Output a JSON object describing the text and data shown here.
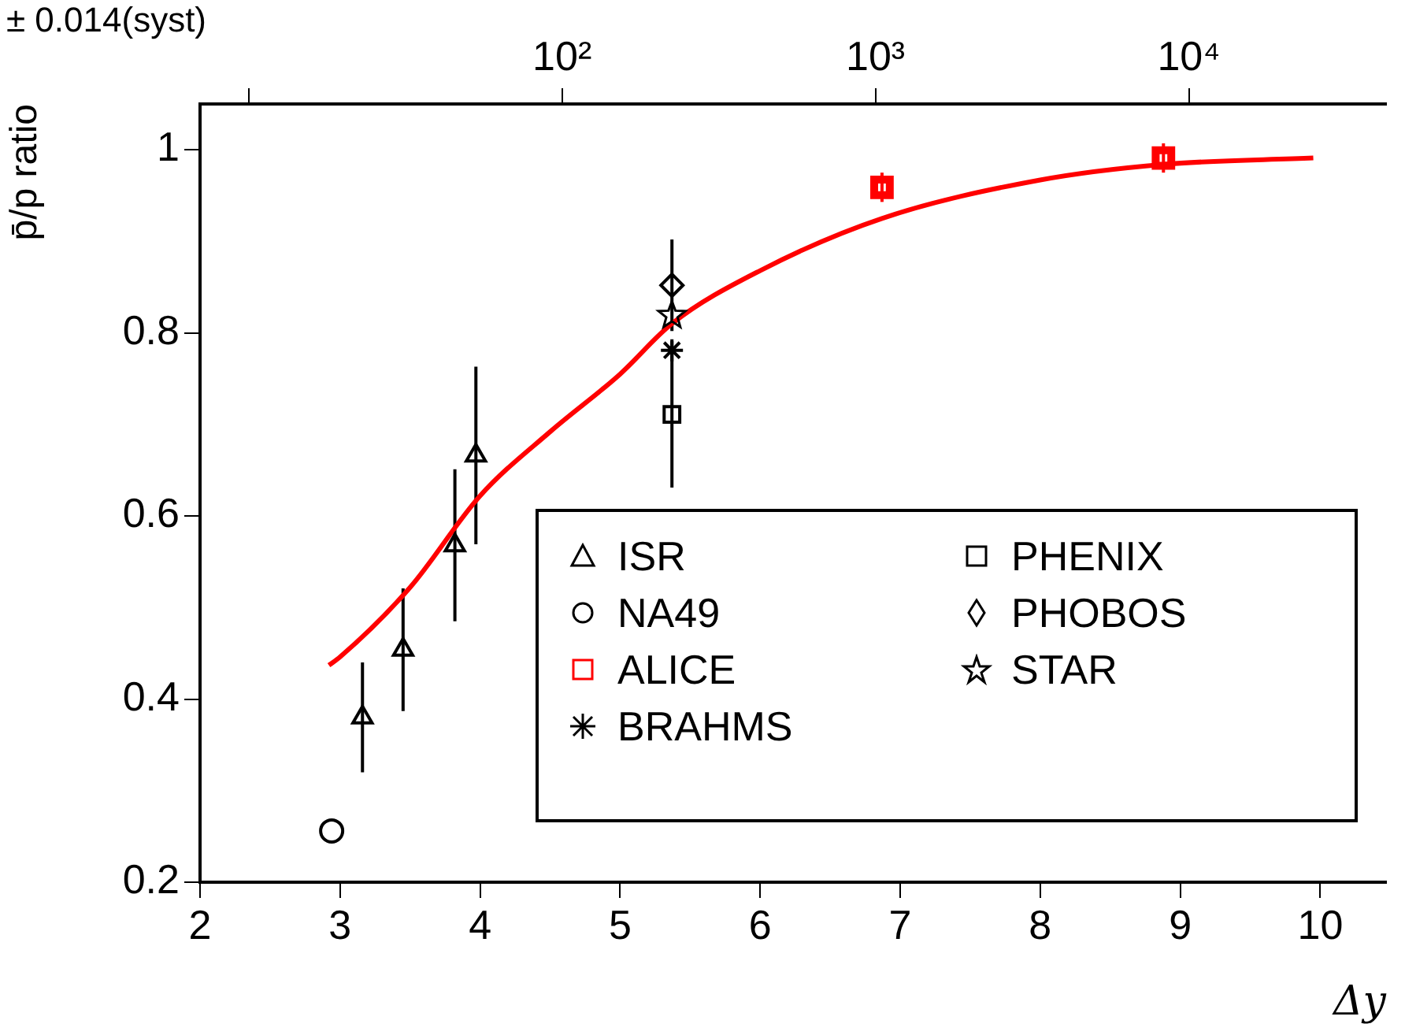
{
  "chart_data": {
    "type": "scatter",
    "xlabel": "Δy",
    "ylabel": "p̄/p ratio",
    "xlim": [
      2,
      10.47
    ],
    "xticks": [
      2,
      3,
      4,
      5,
      6,
      7,
      8,
      9,
      10
    ],
    "ylim": [
      0.2,
      1.05
    ],
    "yticks": [
      0.2,
      0.4,
      0.6,
      0.8,
      1
    ],
    "x2lim": [
      7,
      42600
    ],
    "x2ticks": [
      {
        "value": 10,
        "label": null
      },
      {
        "value": 100,
        "label": "10²"
      },
      {
        "value": 1000,
        "label": "10³"
      },
      {
        "value": 10000,
        "label": "10⁴"
      }
    ],
    "log": "x2",
    "grid": false,
    "legend": "bottom right",
    "annotations": [
      "± 0.014(syst)"
    ],
    "series": [
      {
        "name": "ISR",
        "color": "#000000",
        "marker": "triangle",
        "x": [
          3.16,
          3.45,
          3.82,
          3.97
        ],
        "values": [
          0.38,
          0.454,
          0.568,
          0.666
        ],
        "errors": [
          0.06,
          0.067,
          0.083,
          0.097
        ]
      },
      {
        "name": "NA49",
        "color": "#000000",
        "marker": "circle",
        "x": [
          2.94
        ],
        "values": [
          0.256
        ]
      },
      {
        "name": "ALICE",
        "color": "#ff0000",
        "marker": "square",
        "x": [
          6.87,
          8.88
        ],
        "values": [
          0.959,
          0.991
        ],
        "errors": [
          0.016,
          0.016
        ]
      },
      {
        "name": "BRAHMS",
        "color": "#000000",
        "marker": "cross",
        "x": [
          5.37
        ],
        "values": [
          0.781
        ]
      },
      {
        "name": "PHENIX",
        "color": "#000000",
        "marker": "square",
        "x": [
          5.37
        ],
        "values": [
          0.711
        ],
        "errors": [
          0.08
        ]
      },
      {
        "name": "PHOBOS",
        "color": "#000000",
        "marker": "diamond",
        "x": [
          5.37
        ],
        "values": [
          0.852
        ],
        "errors": [
          0.05
        ]
      },
      {
        "name": "STAR",
        "color": "#000000",
        "marker": "star",
        "x": [
          5.37
        ],
        "values": [
          0.819
        ]
      },
      {
        "type": "line",
        "color": "#ff0000",
        "marker": "none",
        "x": [
          2.92,
          3,
          3.5,
          4,
          4.5,
          5,
          5.37,
          6,
          6.87,
          8,
          8.88,
          9.95
        ],
        "values": [
          0.437,
          0.446,
          0.522,
          0.622,
          0.692,
          0.755,
          0.81,
          0.868,
          0.925,
          0.967,
          0.984,
          0.991
        ]
      }
    ]
  }
}
